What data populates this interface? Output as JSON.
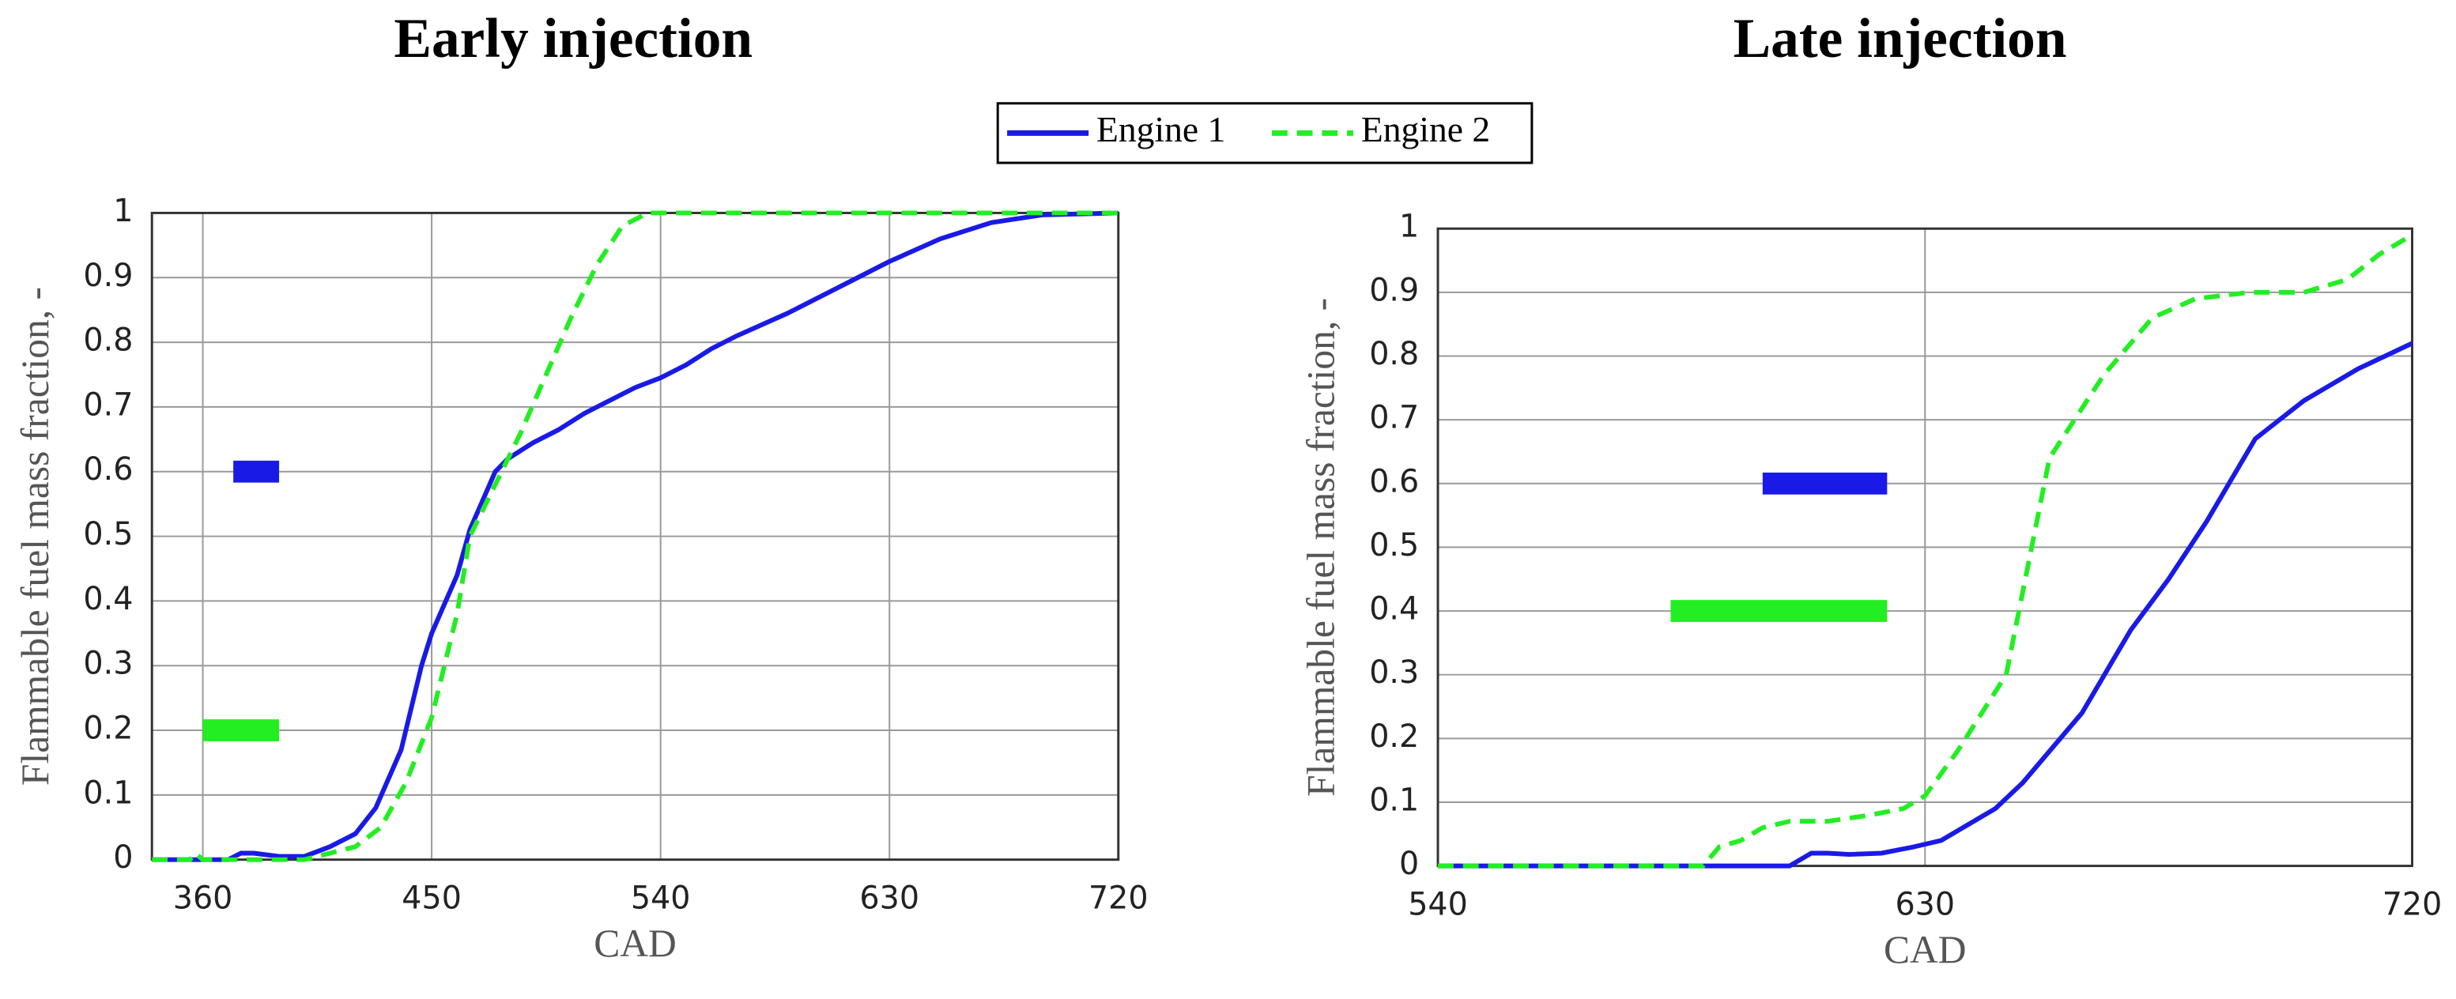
{
  "chart_data": [
    {
      "type": "line",
      "title": "Early injection",
      "xlabel": "CAD",
      "ylabel": "Flammable fuel mass fraction, -",
      "xlim": [
        340,
        720
      ],
      "xticks": [
        360,
        450,
        540,
        630,
        720
      ],
      "ylim": [
        0,
        1
      ],
      "yticks": [
        0,
        0.1,
        0.2,
        0.3,
        0.4,
        0.5,
        0.6,
        0.7,
        0.8,
        0.9,
        1
      ],
      "grid": true,
      "series": [
        {
          "name": "Engine 1",
          "color": "#1a1ae6",
          "dash": false,
          "x": [
            340,
            370,
            375,
            380,
            390,
            400,
            410,
            420,
            428,
            438,
            446,
            450,
            460,
            465,
            475,
            480,
            490,
            500,
            510,
            520,
            530,
            540,
            550,
            560,
            570,
            590,
            610,
            630,
            650,
            670,
            690,
            720
          ],
          "values": [
            0,
            0,
            0.01,
            0.01,
            0.005,
            0.005,
            0.02,
            0.04,
            0.08,
            0.17,
            0.3,
            0.35,
            0.44,
            0.51,
            0.6,
            0.62,
            0.645,
            0.665,
            0.69,
            0.71,
            0.73,
            0.745,
            0.765,
            0.79,
            0.81,
            0.845,
            0.885,
            0.925,
            0.96,
            0.985,
            0.997,
            1
          ]
        },
        {
          "name": "Engine 2",
          "color": "#22ee22",
          "dash": true,
          "x": [
            340,
            355,
            357,
            360,
            400,
            410,
            420,
            430,
            440,
            450,
            460,
            465,
            475,
            485,
            495,
            505,
            515,
            525,
            535,
            720
          ],
          "values": [
            0,
            0,
            0.01,
            0,
            0,
            0.01,
            0.02,
            0.05,
            0.12,
            0.22,
            0.38,
            0.5,
            0.58,
            0.66,
            0.75,
            0.84,
            0.92,
            0.98,
            1,
            1
          ]
        }
      ],
      "bars": [
        {
          "color": "#1a1ae6",
          "x": [
            372,
            390
          ],
          "y": 0.6
        },
        {
          "color": "#22ee22",
          "x": [
            360,
            390
          ],
          "y": 0.2
        }
      ]
    },
    {
      "type": "line",
      "title": "Late injection",
      "xlabel": "CAD",
      "ylabel": "Flammable fuel mass fraction, -",
      "xlim": [
        540,
        720
      ],
      "xticks": [
        540,
        630,
        720
      ],
      "ylim": [
        0,
        1
      ],
      "yticks": [
        0,
        0.1,
        0.2,
        0.3,
        0.4,
        0.5,
        0.6,
        0.7,
        0.8,
        0.9,
        1
      ],
      "grid": true,
      "series": [
        {
          "color": "#1a1ae6",
          "dash": false,
          "x": [
            540,
            605,
            609,
            612,
            616,
            622,
            628,
            633,
            643,
            648,
            655,
            659,
            668,
            675,
            682,
            691,
            700,
            710,
            720
          ],
          "values": [
            0,
            0,
            0.02,
            0.02,
            0.018,
            0.02,
            0.03,
            0.04,
            0.09,
            0.13,
            0.2,
            0.24,
            0.37,
            0.45,
            0.54,
            0.67,
            0.73,
            0.78,
            0.82
          ]
        },
        {
          "color": "#22ee22",
          "dash": true,
          "x": [
            540,
            589,
            592,
            596,
            600,
            605,
            612,
            620,
            626,
            630,
            636,
            645,
            653,
            663,
            672,
            680,
            690,
            700,
            708,
            714,
            720
          ],
          "values": [
            0,
            0,
            0.03,
            0.04,
            0.06,
            0.07,
            0.07,
            0.08,
            0.09,
            0.11,
            0.18,
            0.3,
            0.64,
            0.77,
            0.86,
            0.89,
            0.9,
            0.9,
            0.92,
            0.96,
            0.99
          ]
        }
      ],
      "bars": [
        {
          "color": "#1a1ae6",
          "x": [
            600,
            623
          ],
          "y": 0.6
        },
        {
          "color": "#22ee22",
          "x": [
            583,
            623
          ],
          "y": 0.4
        }
      ]
    }
  ]
}
